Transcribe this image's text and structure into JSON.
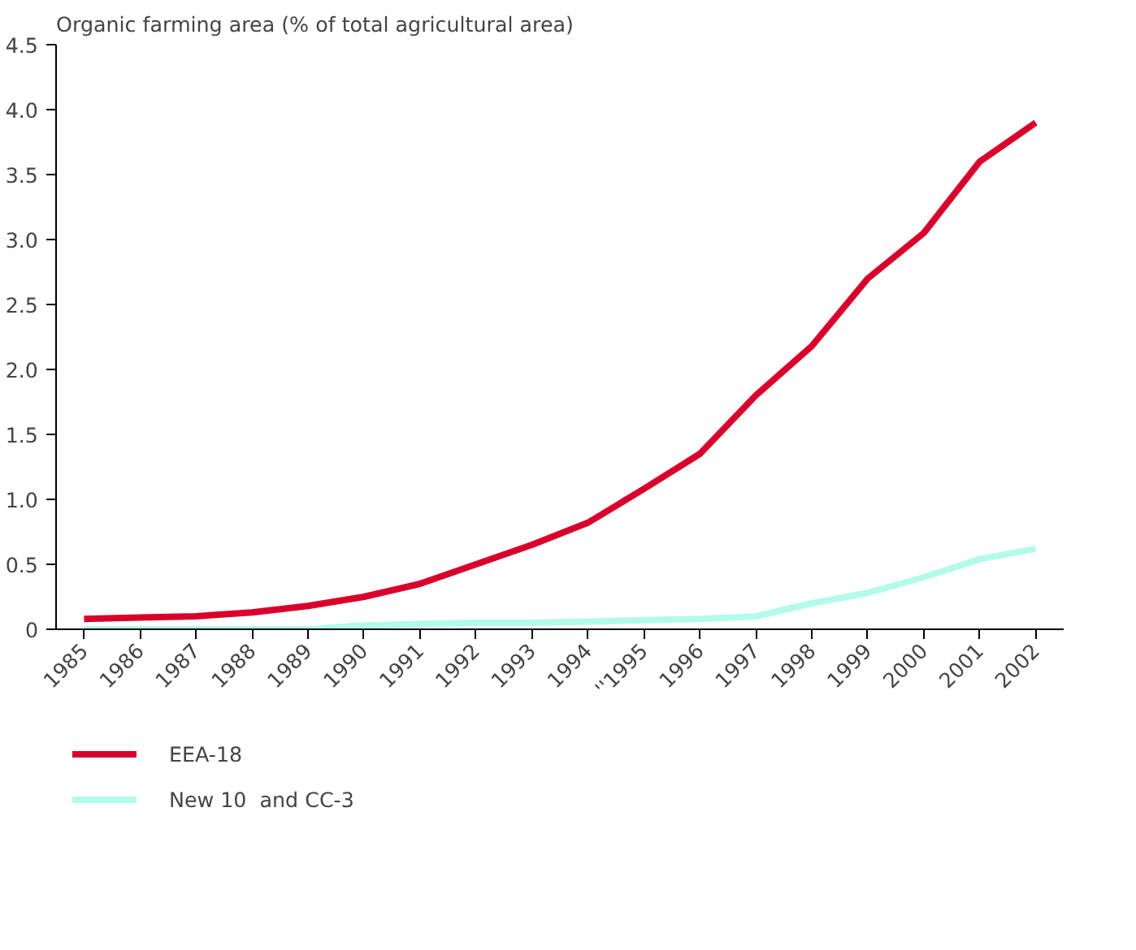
{
  "chart_data": {
    "type": "line",
    "title": "Organic farming area (% of total agricultural area)",
    "categories": [
      "1985",
      "1986",
      "1987",
      "1988",
      "1989",
      "1990",
      "1991",
      "1992",
      "1993",
      "1994",
      "''1995",
      "1996",
      "1997",
      "1998",
      "1999",
      "2000",
      "2001",
      "2002"
    ],
    "series": [
      {
        "name": "EEA-18",
        "color": "#d9002b",
        "values": [
          0.08,
          0.09,
          0.1,
          0.13,
          0.18,
          0.25,
          0.35,
          0.5,
          0.65,
          0.82,
          1.08,
          1.35,
          1.8,
          2.18,
          2.7,
          3.05,
          3.6,
          3.9
        ]
      },
      {
        "name": "New 10  and CC-3",
        "color": "#b3fbe9",
        "values": [
          0,
          0,
          0,
          0,
          0,
          0.03,
          0.04,
          0.05,
          0.05,
          0.06,
          0.07,
          0.08,
          0.1,
          0.2,
          0.28,
          0.4,
          0.54,
          0.62
        ]
      }
    ],
    "ylim": [
      0,
      4.5
    ],
    "yticks": [
      0,
      {
        "value": 0.5,
        "label": "0.5"
      },
      {
        "value": 1,
        "label": "1.0"
      },
      {
        "value": 1.5,
        "label": "1.5"
      },
      {
        "value": 2,
        "label": "2.0"
      },
      {
        "value": 2.5,
        "label": "2.5"
      },
      {
        "value": 3,
        "label": "3.0"
      },
      {
        "value": 3.5,
        "label": "3.5"
      },
      {
        "value": 4,
        "label": "4.0"
      },
      {
        "value": 4.5,
        "label": "4.5"
      }
    ],
    "grid": false,
    "legend": "bottom",
    "marker": "none",
    "line_style": "solid"
  }
}
